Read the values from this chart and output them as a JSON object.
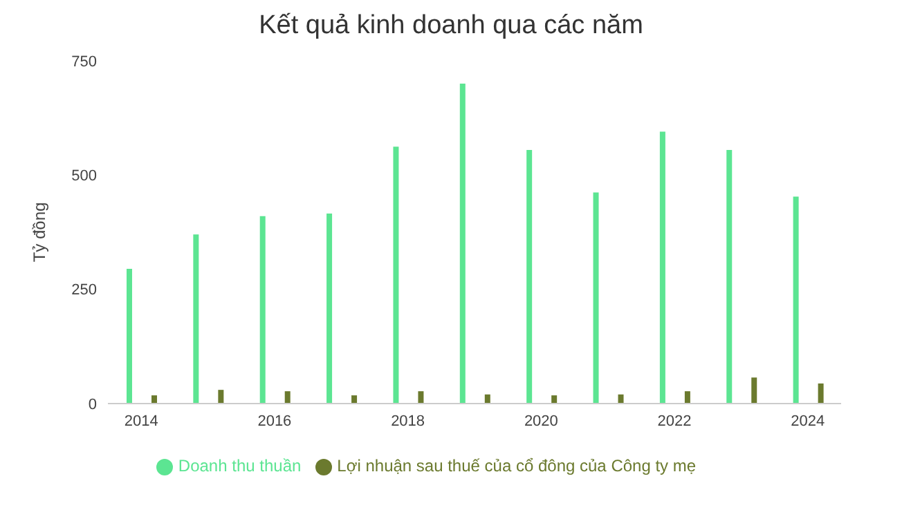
{
  "chart_data": {
    "type": "bar",
    "title": "Kết quả kinh doanh qua các năm",
    "ylabel": "Tỷ đồng",
    "categories": [
      "2014",
      null,
      "2016",
      null,
      "2018",
      null,
      "2020",
      null,
      "2022",
      null,
      "2024"
    ],
    "series": [
      {
        "name": "Doanh thu thuần",
        "color": "#5ce592",
        "values": [
          295,
          370,
          410,
          416,
          562,
          700,
          555,
          462,
          595,
          555,
          453
        ]
      },
      {
        "name": "Lợi nhuận sau thuế của cổ đông của Công ty mẹ",
        "color": "#6b7a2e",
        "values": [
          18,
          30,
          27,
          18,
          27,
          20,
          18,
          20,
          27,
          57,
          44
        ]
      }
    ],
    "ylim": [
      0,
      750
    ],
    "yticks": [
      0,
      250,
      500,
      750
    ],
    "grid": false,
    "legend": "bottom"
  }
}
